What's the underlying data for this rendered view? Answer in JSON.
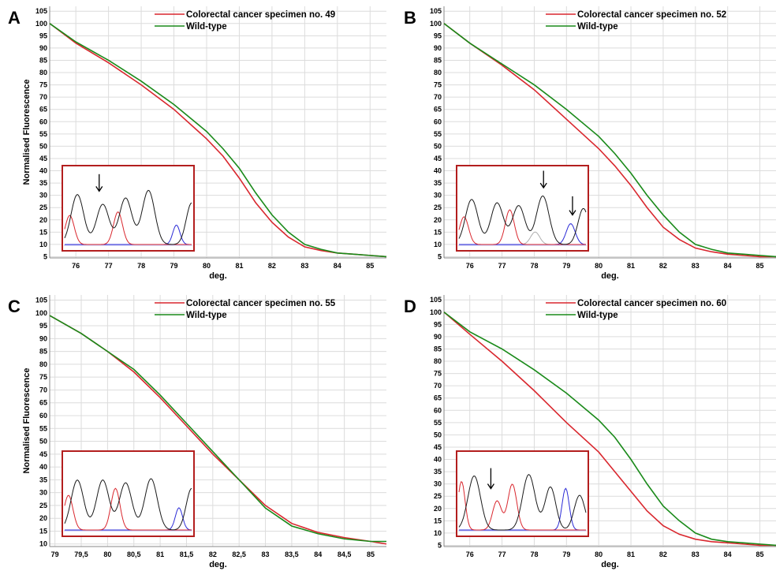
{
  "colors": {
    "mutant": "#d9272e",
    "wildtype": "#1a8a1a",
    "inset_border": "#b31e1e",
    "trace_black": "#1a1a1a",
    "trace_red": "#d9272e",
    "trace_blue": "#2b2bd6",
    "trace_gray": "#b0b0b0",
    "grid": "#dcdcdc"
  },
  "chart_data": [
    {
      "type": "line",
      "panel_label": "A",
      "xlabel": "deg.",
      "ylabel": "Normalised Fluorescence",
      "xlim": [
        75.2,
        85.5
      ],
      "ylim": [
        4.5,
        107
      ],
      "x_ticks": [
        "76",
        "77",
        "78",
        "79",
        "80",
        "81",
        "82",
        "83",
        "84",
        "85"
      ],
      "y_ticks": [
        "5",
        "10",
        "15",
        "20",
        "25",
        "30",
        "35",
        "40",
        "45",
        "50",
        "55",
        "60",
        "65",
        "70",
        "75",
        "80",
        "85",
        "90",
        "95",
        "100",
        "105"
      ],
      "grid": true,
      "legend_position": "top-right",
      "series": [
        {
          "name": "Colorectal cancer specimen no. 49",
          "color": "mutant",
          "x": [
            75.2,
            76,
            77,
            78,
            79,
            80,
            80.5,
            81,
            81.5,
            82,
            82.5,
            83,
            83.5,
            84,
            84.5,
            85,
            85.5
          ],
          "y": [
            100,
            92,
            84,
            75,
            65,
            53,
            46,
            37,
            27,
            19,
            13,
            9,
            7.5,
            6.5,
            6,
            5.5,
            5
          ]
        },
        {
          "name": "Wild-type",
          "color": "wildtype",
          "x": [
            75.2,
            76,
            77,
            78,
            79,
            80,
            80.5,
            81,
            81.5,
            82,
            82.5,
            83,
            83.5,
            84,
            84.5,
            85,
            85.5
          ],
          "y": [
            100,
            92.5,
            85,
            76.5,
            67,
            56,
            49,
            41,
            31,
            22,
            15,
            10,
            8,
            6.5,
            6,
            5.5,
            5
          ]
        }
      ],
      "inset": {
        "arrows": 1
      }
    },
    {
      "type": "line",
      "panel_label": "B",
      "xlabel": "deg.",
      "ylabel": "",
      "xlim": [
        75.2,
        85.5
      ],
      "ylim": [
        4.5,
        107
      ],
      "x_ticks": [
        "76",
        "77",
        "78",
        "79",
        "80",
        "81",
        "82",
        "83",
        "84",
        "85"
      ],
      "y_ticks": [
        "5",
        "10",
        "15",
        "20",
        "25",
        "30",
        "35",
        "40",
        "45",
        "50",
        "55",
        "60",
        "65",
        "70",
        "75",
        "80",
        "85",
        "90",
        "95",
        "100",
        "105"
      ],
      "grid": true,
      "legend_position": "top-right",
      "series": [
        {
          "name": "Colorectal cancer specimen no. 52",
          "color": "mutant",
          "x": [
            75.2,
            76,
            77,
            78,
            79,
            80,
            80.5,
            81,
            81.5,
            82,
            82.5,
            83,
            83.5,
            84,
            84.5,
            85,
            85.5
          ],
          "y": [
            100,
            92,
            83,
            73,
            61,
            49,
            42,
            34,
            25,
            17,
            12,
            8.5,
            7,
            6,
            5.5,
            5,
            5
          ]
        },
        {
          "name": "Wild-type",
          "color": "wildtype",
          "x": [
            75.2,
            76,
            77,
            78,
            79,
            80,
            80.5,
            81,
            81.5,
            82,
            82.5,
            83,
            83.5,
            84,
            84.5,
            85,
            85.5
          ],
          "y": [
            100,
            92,
            83.5,
            75,
            65,
            54,
            47,
            39,
            30,
            22,
            15,
            10,
            8,
            6.5,
            6,
            5.5,
            5
          ]
        }
      ],
      "inset": {
        "arrows": 2
      }
    },
    {
      "type": "line",
      "panel_label": "C",
      "xlabel": "deg.",
      "ylabel": "Normalised Fluorescence",
      "xlim": [
        78.9,
        85.3
      ],
      "ylim": [
        9,
        107
      ],
      "x_ticks": [
        "79",
        "79,5",
        "80",
        "80,5",
        "81",
        "81,5",
        "82",
        "82,5",
        "83",
        "83,5",
        "84",
        "84,5",
        "85"
      ],
      "y_ticks": [
        "10",
        "15",
        "20",
        "25",
        "30",
        "35",
        "40",
        "45",
        "50",
        "55",
        "60",
        "65",
        "70",
        "75",
        "80",
        "85",
        "90",
        "95",
        "100",
        "105"
      ],
      "grid": true,
      "legend_position": "top-right",
      "series": [
        {
          "name": "Colorectal cancer specimen no. 55",
          "color": "mutant",
          "x": [
            78.9,
            79.5,
            80,
            80.5,
            81,
            81.5,
            82,
            82.5,
            83,
            83.5,
            84,
            84.5,
            85,
            85.3
          ],
          "y": [
            99,
            92,
            85,
            77,
            67,
            56,
            45,
            35,
            25,
            18,
            14.5,
            12.5,
            11,
            10
          ]
        },
        {
          "name": "Wild-type",
          "color": "wildtype",
          "x": [
            78.9,
            79.5,
            80,
            80.5,
            81,
            81.5,
            82,
            82.5,
            83,
            83.5,
            84,
            84.5,
            85,
            85.3
          ],
          "y": [
            99,
            92,
            85,
            78,
            68,
            57,
            46,
            35,
            24,
            17,
            14,
            12,
            11,
            11
          ]
        }
      ],
      "inset": {
        "arrows": 0
      }
    },
    {
      "type": "line",
      "panel_label": "D",
      "xlabel": "deg.",
      "ylabel": "",
      "xlim": [
        75.2,
        85.5
      ],
      "ylim": [
        4.5,
        107
      ],
      "x_ticks": [
        "76",
        "77",
        "78",
        "79",
        "80",
        "81",
        "82",
        "83",
        "84",
        "85"
      ],
      "y_ticks": [
        "5",
        "10",
        "15",
        "20",
        "25",
        "30",
        "35",
        "40",
        "45",
        "50",
        "55",
        "60",
        "65",
        "70",
        "75",
        "80",
        "85",
        "90",
        "95",
        "100",
        "105"
      ],
      "grid": true,
      "legend_position": "top-right",
      "series": [
        {
          "name": "Colorectal cancer specimen no. 60",
          "color": "mutant",
          "x": [
            75.2,
            76,
            77,
            78,
            79,
            80,
            80.5,
            81,
            81.5,
            82,
            82.5,
            83,
            83.5,
            84,
            84.5,
            85,
            85.5
          ],
          "y": [
            100,
            91,
            80,
            68,
            55,
            43,
            35,
            27,
            19,
            13,
            9.5,
            7.5,
            6.5,
            6,
            5.5,
            5,
            5
          ]
        },
        {
          "name": "Wild-type",
          "color": "wildtype",
          "x": [
            75.2,
            76,
            77,
            78,
            79,
            80,
            80.5,
            81,
            81.5,
            82,
            82.5,
            83,
            83.5,
            84,
            84.5,
            85,
            85.5
          ],
          "y": [
            100,
            92,
            85,
            76.5,
            67,
            56,
            49,
            40,
            30,
            21,
            15,
            10,
            7.5,
            6.5,
            6,
            5.5,
            5
          ]
        }
      ],
      "inset": {
        "arrows": 1
      }
    }
  ]
}
